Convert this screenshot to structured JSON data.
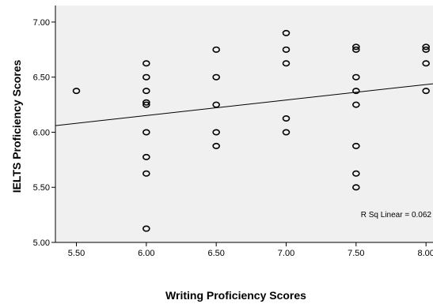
{
  "chart_data": {
    "type": "scatter",
    "title": "",
    "xlabel": "Writing Proficiency Scores",
    "ylabel": "IELTS Proficiency Scores",
    "xlim": [
      5.35,
      8.05
    ],
    "ylim": [
      5.0,
      7.15
    ],
    "xticks": [
      "5.50",
      "6.00",
      "6.50",
      "7.00",
      "7.50",
      "8.00"
    ],
    "yticks": [
      "5.00",
      "5.50",
      "6.00",
      "6.50",
      "7.00"
    ],
    "grid": false,
    "plot_background": "#f0f0f0",
    "marker_color": "#000000",
    "points": [
      {
        "x": 5.5,
        "y": 6.375
      },
      {
        "x": 6.0,
        "y": 6.625
      },
      {
        "x": 6.0,
        "y": 6.5
      },
      {
        "x": 6.0,
        "y": 6.375
      },
      {
        "x": 6.0,
        "y": 6.27
      },
      {
        "x": 6.0,
        "y": 6.25
      },
      {
        "x": 6.0,
        "y": 6.0
      },
      {
        "x": 6.0,
        "y": 5.775
      },
      {
        "x": 6.0,
        "y": 5.625
      },
      {
        "x": 6.0,
        "y": 5.125
      },
      {
        "x": 6.5,
        "y": 6.75
      },
      {
        "x": 6.5,
        "y": 6.5
      },
      {
        "x": 6.5,
        "y": 6.25
      },
      {
        "x": 6.5,
        "y": 6.0
      },
      {
        "x": 6.5,
        "y": 5.875
      },
      {
        "x": 7.0,
        "y": 6.9
      },
      {
        "x": 7.0,
        "y": 6.75
      },
      {
        "x": 7.0,
        "y": 6.625
      },
      {
        "x": 7.0,
        "y": 6.125
      },
      {
        "x": 7.0,
        "y": 6.0
      },
      {
        "x": 7.5,
        "y": 6.775
      },
      {
        "x": 7.5,
        "y": 6.75
      },
      {
        "x": 7.5,
        "y": 6.5
      },
      {
        "x": 7.5,
        "y": 6.375
      },
      {
        "x": 7.5,
        "y": 6.25
      },
      {
        "x": 7.5,
        "y": 5.875
      },
      {
        "x": 7.5,
        "y": 5.625
      },
      {
        "x": 7.5,
        "y": 5.5
      },
      {
        "x": 8.0,
        "y": 6.775
      },
      {
        "x": 8.0,
        "y": 6.75
      },
      {
        "x": 8.0,
        "y": 6.625
      },
      {
        "x": 8.0,
        "y": 6.375
      }
    ],
    "fit_line": {
      "type": "linear",
      "start": {
        "x": 5.35,
        "y": 6.06
      },
      "end": {
        "x": 8.05,
        "y": 6.44
      },
      "r_squared": 0.062,
      "label": "R Sq Linear = 0.062"
    }
  }
}
